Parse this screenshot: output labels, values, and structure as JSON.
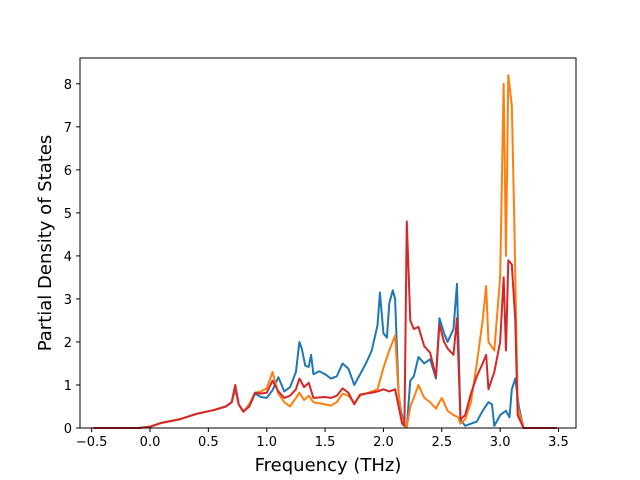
{
  "chart_data": {
    "type": "line",
    "title": "",
    "xlabel": "Frequency (THz)",
    "ylabel": "Partial Density of States",
    "xlim": [
      -0.6,
      3.65
    ],
    "ylim": [
      0,
      8.6
    ],
    "xticks": [
      {
        "value": -0.5,
        "label": "−0.5"
      },
      {
        "value": 0.0,
        "label": "0.0"
      },
      {
        "value": 0.5,
        "label": "0.5"
      },
      {
        "value": 1.0,
        "label": "1.0"
      },
      {
        "value": 1.5,
        "label": "1.5"
      },
      {
        "value": 2.0,
        "label": "2.0"
      },
      {
        "value": 2.5,
        "label": "2.5"
      },
      {
        "value": 3.0,
        "label": "3.0"
      },
      {
        "value": 3.5,
        "label": "3.5"
      }
    ],
    "yticks": [
      {
        "value": 0,
        "label": "0"
      },
      {
        "value": 1,
        "label": "1"
      },
      {
        "value": 2,
        "label": "2"
      },
      {
        "value": 3,
        "label": "3"
      },
      {
        "value": 4,
        "label": "4"
      },
      {
        "value": 5,
        "label": "5"
      },
      {
        "value": 6,
        "label": "6"
      },
      {
        "value": 7,
        "label": "7"
      },
      {
        "value": 8,
        "label": "8"
      }
    ],
    "grid": false,
    "legend": "none",
    "series": [
      {
        "color": "#1f77b4",
        "points": [
          [
            -0.48,
            0
          ],
          [
            -0.1,
            0
          ],
          [
            0.0,
            0.03
          ],
          [
            0.1,
            0.12
          ],
          [
            0.25,
            0.2
          ],
          [
            0.4,
            0.33
          ],
          [
            0.55,
            0.42
          ],
          [
            0.65,
            0.5
          ],
          [
            0.7,
            0.6
          ],
          [
            0.73,
            0.9
          ],
          [
            0.76,
            0.55
          ],
          [
            0.8,
            0.38
          ],
          [
            0.85,
            0.5
          ],
          [
            0.9,
            0.8
          ],
          [
            0.95,
            0.72
          ],
          [
            1.0,
            0.7
          ],
          [
            1.05,
            0.88
          ],
          [
            1.1,
            1.18
          ],
          [
            1.15,
            0.85
          ],
          [
            1.2,
            0.95
          ],
          [
            1.25,
            1.3
          ],
          [
            1.28,
            2.0
          ],
          [
            1.3,
            1.85
          ],
          [
            1.33,
            1.45
          ],
          [
            1.36,
            1.42
          ],
          [
            1.38,
            1.7
          ],
          [
            1.4,
            1.25
          ],
          [
            1.45,
            1.32
          ],
          [
            1.5,
            1.25
          ],
          [
            1.55,
            1.15
          ],
          [
            1.6,
            1.2
          ],
          [
            1.65,
            1.5
          ],
          [
            1.7,
            1.38
          ],
          [
            1.75,
            1.0
          ],
          [
            1.8,
            1.25
          ],
          [
            1.85,
            1.5
          ],
          [
            1.9,
            1.8
          ],
          [
            1.95,
            2.4
          ],
          [
            1.97,
            3.15
          ],
          [
            2.0,
            2.2
          ],
          [
            2.03,
            2.1
          ],
          [
            2.05,
            2.9
          ],
          [
            2.08,
            3.2
          ],
          [
            2.1,
            3.0
          ],
          [
            2.13,
            0.8
          ],
          [
            2.15,
            0.4
          ],
          [
            2.18,
            0.05
          ],
          [
            2.2,
            0.02
          ],
          [
            2.23,
            1.1
          ],
          [
            2.26,
            1.2
          ],
          [
            2.3,
            1.65
          ],
          [
            2.35,
            1.5
          ],
          [
            2.4,
            1.6
          ],
          [
            2.45,
            1.15
          ],
          [
            2.48,
            2.55
          ],
          [
            2.52,
            2.2
          ],
          [
            2.55,
            2.0
          ],
          [
            2.6,
            2.3
          ],
          [
            2.63,
            3.35
          ],
          [
            2.66,
            0.2
          ],
          [
            2.7,
            0.05
          ],
          [
            2.8,
            0.15
          ],
          [
            2.85,
            0.4
          ],
          [
            2.9,
            0.6
          ],
          [
            2.93,
            0.55
          ],
          [
            2.95,
            0.05
          ],
          [
            3.0,
            0.3
          ],
          [
            3.05,
            0.4
          ],
          [
            3.08,
            0.25
          ],
          [
            3.1,
            0.9
          ],
          [
            3.13,
            1.15
          ],
          [
            3.16,
            0.5
          ],
          [
            3.2,
            0
          ],
          [
            3.48,
            0
          ]
        ]
      },
      {
        "color": "#ff7f0e",
        "points": [
          [
            -0.48,
            0
          ],
          [
            -0.1,
            0
          ],
          [
            0.0,
            0.03
          ],
          [
            0.1,
            0.12
          ],
          [
            0.25,
            0.2
          ],
          [
            0.4,
            0.33
          ],
          [
            0.55,
            0.42
          ],
          [
            0.65,
            0.5
          ],
          [
            0.7,
            0.6
          ],
          [
            0.73,
            0.95
          ],
          [
            0.76,
            0.55
          ],
          [
            0.8,
            0.38
          ],
          [
            0.85,
            0.55
          ],
          [
            0.9,
            0.82
          ],
          [
            0.95,
            0.85
          ],
          [
            1.0,
            0.92
          ],
          [
            1.05,
            1.3
          ],
          [
            1.1,
            0.8
          ],
          [
            1.15,
            0.6
          ],
          [
            1.2,
            0.5
          ],
          [
            1.25,
            0.7
          ],
          [
            1.28,
            0.82
          ],
          [
            1.32,
            0.65
          ],
          [
            1.36,
            0.75
          ],
          [
            1.4,
            0.6
          ],
          [
            1.5,
            0.55
          ],
          [
            1.55,
            0.52
          ],
          [
            1.6,
            0.6
          ],
          [
            1.65,
            0.8
          ],
          [
            1.7,
            0.75
          ],
          [
            1.75,
            0.58
          ],
          [
            1.8,
            0.75
          ],
          [
            1.85,
            0.8
          ],
          [
            1.9,
            0.85
          ],
          [
            1.95,
            0.9
          ],
          [
            2.0,
            1.4
          ],
          [
            2.05,
            1.8
          ],
          [
            2.1,
            2.15
          ],
          [
            2.13,
            0.8
          ],
          [
            2.15,
            0.3
          ],
          [
            2.18,
            0.05
          ],
          [
            2.2,
            0.02
          ],
          [
            2.23,
            0.5
          ],
          [
            2.26,
            0.7
          ],
          [
            2.3,
            1.0
          ],
          [
            2.35,
            0.7
          ],
          [
            2.4,
            0.6
          ],
          [
            2.45,
            0.45
          ],
          [
            2.5,
            0.7
          ],
          [
            2.55,
            0.4
          ],
          [
            2.6,
            0.3
          ],
          [
            2.64,
            0.25
          ],
          [
            2.66,
            0.1
          ],
          [
            2.7,
            0.2
          ],
          [
            2.75,
            0.6
          ],
          [
            2.8,
            1.5
          ],
          [
            2.85,
            2.5
          ],
          [
            2.88,
            3.3
          ],
          [
            2.9,
            2.0
          ],
          [
            2.95,
            1.8
          ],
          [
            3.0,
            3.5
          ],
          [
            3.03,
            8.0
          ],
          [
            3.05,
            4.0
          ],
          [
            3.07,
            8.2
          ],
          [
            3.1,
            7.5
          ],
          [
            3.12,
            5.0
          ],
          [
            3.15,
            0.5
          ],
          [
            3.2,
            0
          ],
          [
            3.48,
            0
          ]
        ]
      },
      {
        "color": "#d62728",
        "points": [
          [
            -0.48,
            0
          ],
          [
            -0.1,
            0
          ],
          [
            0.0,
            0.03
          ],
          [
            0.1,
            0.12
          ],
          [
            0.25,
            0.2
          ],
          [
            0.4,
            0.33
          ],
          [
            0.55,
            0.42
          ],
          [
            0.65,
            0.5
          ],
          [
            0.7,
            0.6
          ],
          [
            0.73,
            1.0
          ],
          [
            0.76,
            0.55
          ],
          [
            0.8,
            0.38
          ],
          [
            0.85,
            0.5
          ],
          [
            0.9,
            0.82
          ],
          [
            0.95,
            0.8
          ],
          [
            1.0,
            0.82
          ],
          [
            1.05,
            1.1
          ],
          [
            1.1,
            0.85
          ],
          [
            1.15,
            0.7
          ],
          [
            1.2,
            0.75
          ],
          [
            1.25,
            0.9
          ],
          [
            1.28,
            1.15
          ],
          [
            1.32,
            0.95
          ],
          [
            1.36,
            1.05
          ],
          [
            1.4,
            0.7
          ],
          [
            1.5,
            0.72
          ],
          [
            1.55,
            0.7
          ],
          [
            1.6,
            0.75
          ],
          [
            1.65,
            0.92
          ],
          [
            1.7,
            0.82
          ],
          [
            1.75,
            0.55
          ],
          [
            1.8,
            0.78
          ],
          [
            1.9,
            0.82
          ],
          [
            1.95,
            0.85
          ],
          [
            2.0,
            0.9
          ],
          [
            2.05,
            0.85
          ],
          [
            2.1,
            0.9
          ],
          [
            2.13,
            0.5
          ],
          [
            2.16,
            0.1
          ],
          [
            2.18,
            0.05
          ],
          [
            2.2,
            4.8
          ],
          [
            2.23,
            2.5
          ],
          [
            2.26,
            2.3
          ],
          [
            2.3,
            2.35
          ],
          [
            2.35,
            1.9
          ],
          [
            2.4,
            1.75
          ],
          [
            2.45,
            1.2
          ],
          [
            2.48,
            2.4
          ],
          [
            2.52,
            2.0
          ],
          [
            2.55,
            1.85
          ],
          [
            2.6,
            1.7
          ],
          [
            2.63,
            2.55
          ],
          [
            2.66,
            0.2
          ],
          [
            2.7,
            0.3
          ],
          [
            2.75,
            0.8
          ],
          [
            2.8,
            1.2
          ],
          [
            2.85,
            1.5
          ],
          [
            2.88,
            1.7
          ],
          [
            2.9,
            0.9
          ],
          [
            2.95,
            1.3
          ],
          [
            3.0,
            2.0
          ],
          [
            3.03,
            3.5
          ],
          [
            3.05,
            1.8
          ],
          [
            3.07,
            3.9
          ],
          [
            3.1,
            3.8
          ],
          [
            3.13,
            2.5
          ],
          [
            3.15,
            0.3
          ],
          [
            3.2,
            0
          ],
          [
            3.48,
            0
          ]
        ]
      }
    ]
  }
}
